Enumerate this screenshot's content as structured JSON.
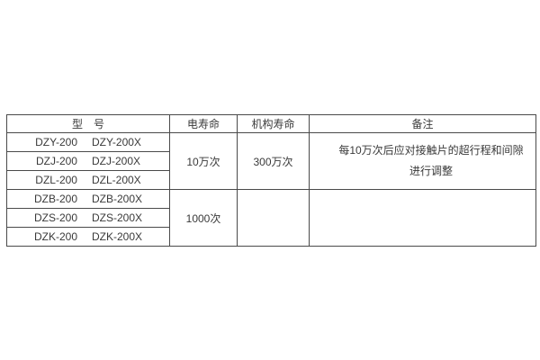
{
  "page": {
    "background": "#ffffff"
  },
  "table": {
    "colors": {
      "border": "#4a4a4a",
      "text": "#3a3a3a",
      "background": "#ffffff"
    },
    "headers": {
      "model": "型　号",
      "electrical_life": "电寿命",
      "mechanism_life": "机构寿命",
      "remarks": "备注"
    },
    "groups": [
      {
        "rows": [
          [
            "DZY-200",
            "DZY-200X"
          ],
          [
            "DZJ-200",
            "DZJ-200X"
          ],
          [
            "DZL-200",
            "DZL-200X"
          ]
        ],
        "electrical_life": "10万次",
        "mechanism_life": "300万次",
        "remarks_lines": [
          "每10万次后应对接触片的超行程和间隙",
          "进行调整"
        ]
      },
      {
        "rows": [
          [
            "DZB-200",
            "DZB-200X"
          ],
          [
            "DZS-200",
            "DZS-200X"
          ],
          [
            "DZK-200",
            "DZK-200X"
          ]
        ],
        "electrical_life": "1000次",
        "mechanism_life": "",
        "remarks_lines": [
          "",
          ""
        ]
      }
    ]
  }
}
